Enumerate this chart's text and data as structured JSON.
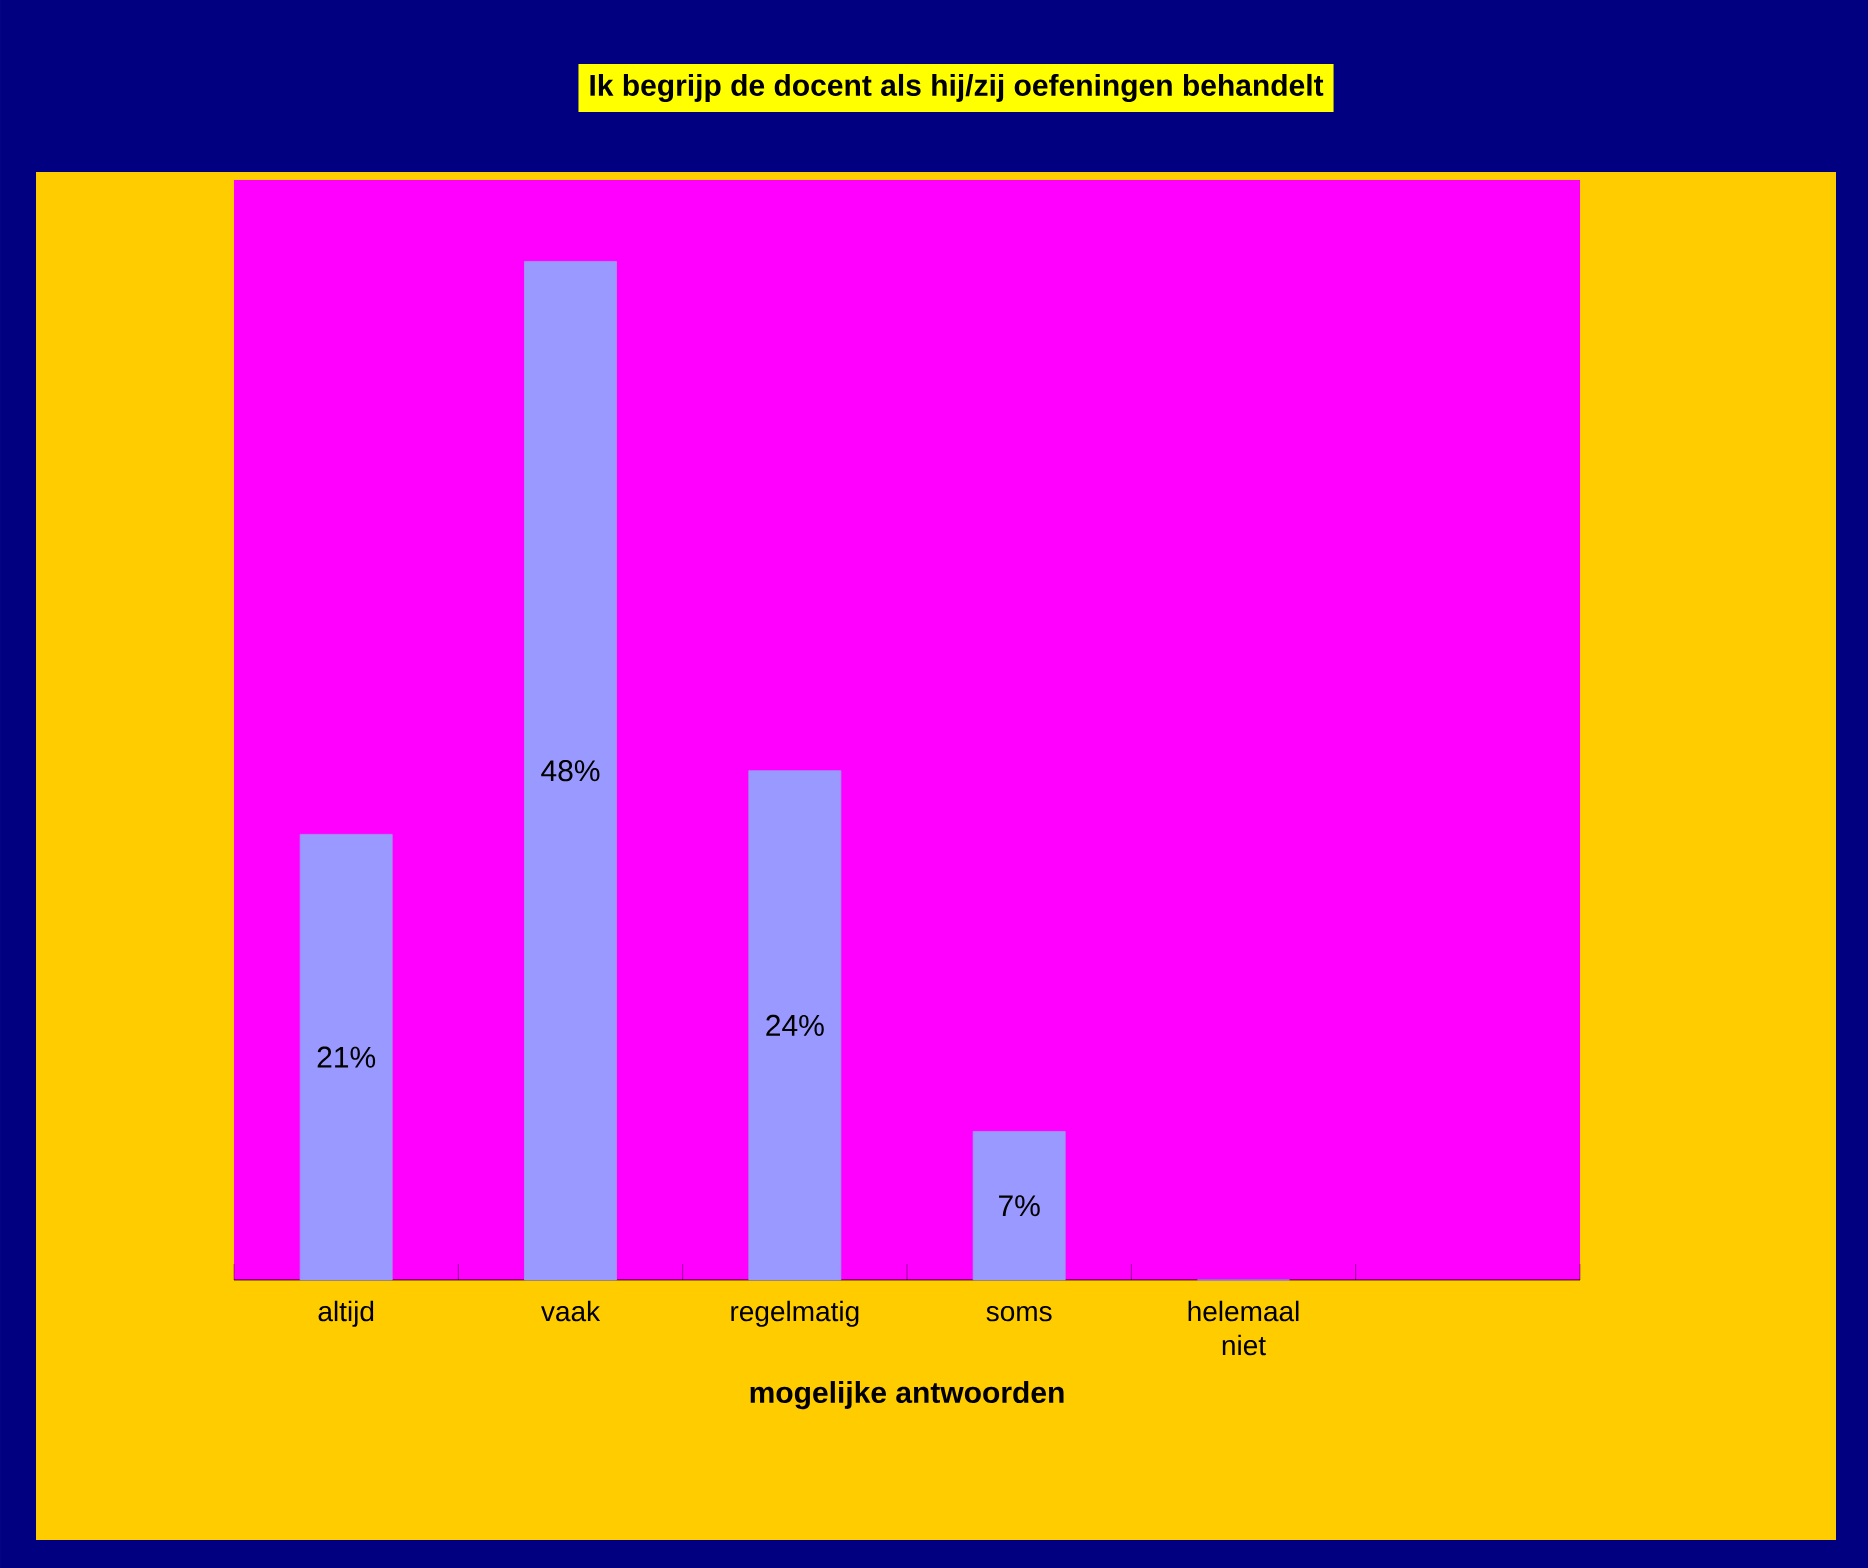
{
  "chart_data": {
    "type": "bar",
    "title": "Ik begrijp de docent als hij/zij oefeningen behandelt",
    "xlabel": "mogelijke antwoorden",
    "categories": [
      "altijd",
      "vaak",
      "regelmatig",
      "soms",
      "helemaal niet",
      null
    ],
    "values": [
      21,
      48,
      24,
      7,
      0,
      null
    ],
    "value_labels": [
      "21%",
      "48%",
      "24%",
      "7%",
      null,
      null
    ],
    "color": "#9999ff"
  }
}
